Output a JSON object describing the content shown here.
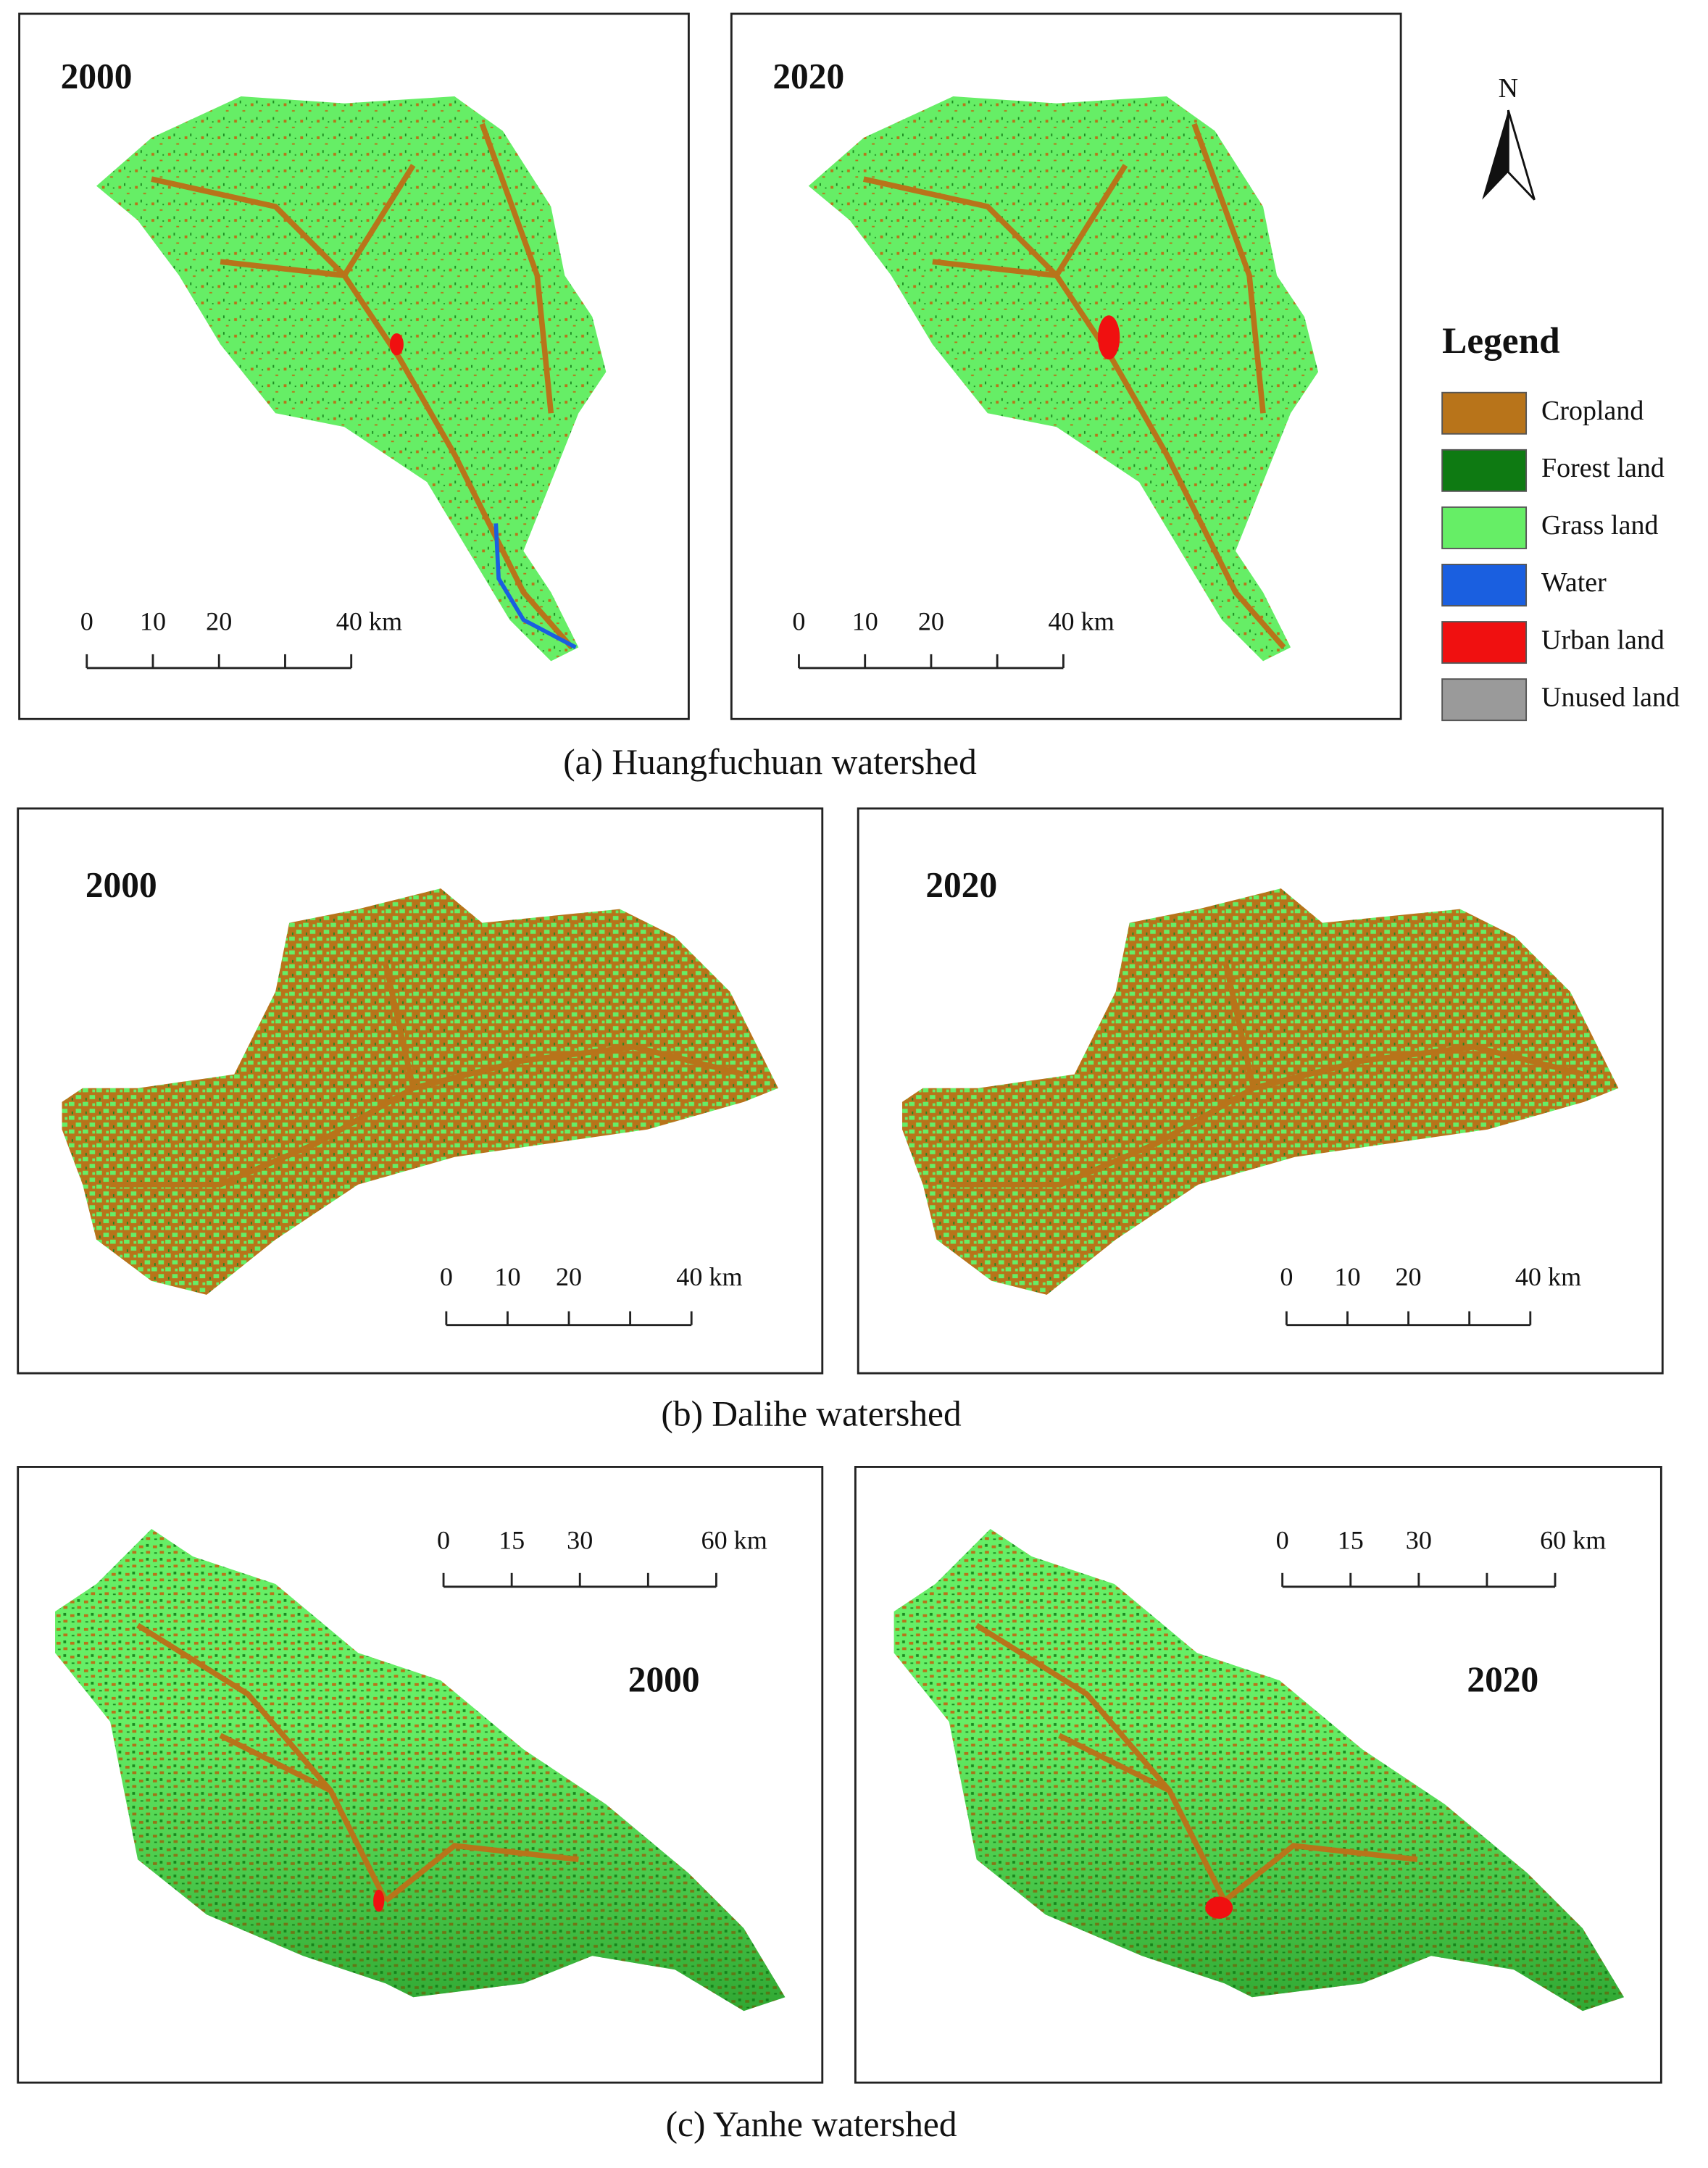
{
  "panels": [
    {
      "year": "2000",
      "scale": [
        0,
        10,
        20,
        {
          "value": 40,
          "label": "40 km"
        }
      ]
    },
    {
      "year": "2020",
      "scale": [
        0,
        10,
        20,
        {
          "value": 40,
          "label": "40 km"
        }
      ]
    },
    {
      "year": "2000",
      "scale": [
        0,
        10,
        20,
        {
          "value": 40,
          "label": "40 km"
        }
      ]
    },
    {
      "year": "2020",
      "scale": [
        0,
        10,
        20,
        {
          "value": 40,
          "label": "40 km"
        }
      ]
    },
    {
      "year": "2000",
      "scale": [
        0,
        15,
        30,
        {
          "value": 60,
          "label": "60 km"
        }
      ]
    },
    {
      "year": "2020",
      "scale": [
        0,
        15,
        30,
        {
          "value": 60,
          "label": "60 km"
        }
      ]
    }
  ],
  "captions": [
    "(a) Huangfuchuan watershed",
    "(b) Dalihe watershed",
    "(c) Yanhe watershed"
  ],
  "north": "N",
  "legend": {
    "title": "Legend",
    "items": [
      {
        "label": "Cropland",
        "color": "#b8741a"
      },
      {
        "label": "Forest land",
        "color": "#0e7a12"
      },
      {
        "label": "Grass land",
        "color": "#66ee66"
      },
      {
        "label": "Water",
        "color": "#1a5fe0"
      },
      {
        "label": "Urban land",
        "color": "#f01010"
      },
      {
        "label": "Unused land",
        "color": "#9a9a9a"
      }
    ]
  }
}
